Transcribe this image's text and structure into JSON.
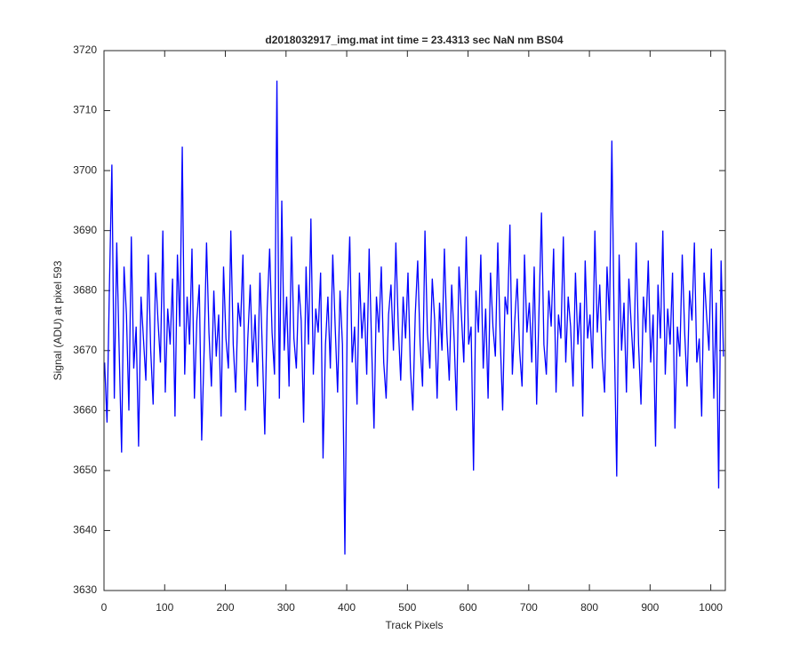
{
  "chart_data": {
    "type": "line",
    "title": "d2018032917_img.mat int time = 23.4313 sec  NaN nm BS04",
    "xlabel": "Track Pixels",
    "ylabel": "Signal (ADU) at pixel 593",
    "color": "#0000ff",
    "xlim": [
      0,
      1024
    ],
    "xticks": [
      0,
      100,
      200,
      300,
      400,
      500,
      600,
      700,
      800,
      900,
      1000
    ],
    "ylim": [
      3630,
      3720
    ],
    "yticks": [
      3630,
      3640,
      3650,
      3660,
      3670,
      3680,
      3690,
      3700,
      3710,
      3720
    ],
    "x": [
      1,
      5,
      9,
      13,
      17,
      21,
      25,
      29,
      33,
      37,
      41,
      45,
      49,
      53,
      57,
      61,
      65,
      69,
      73,
      77,
      81,
      85,
      89,
      93,
      97,
      101,
      105,
      109,
      113,
      117,
      121,
      125,
      129,
      133,
      137,
      141,
      145,
      149,
      153,
      157,
      161,
      165,
      169,
      173,
      177,
      181,
      185,
      189,
      193,
      197,
      201,
      205,
      209,
      213,
      217,
      221,
      225,
      229,
      233,
      237,
      241,
      245,
      249,
      253,
      257,
      261,
      265,
      269,
      273,
      277,
      281,
      285,
      289,
      293,
      297,
      301,
      305,
      309,
      313,
      317,
      321,
      325,
      329,
      333,
      337,
      341,
      345,
      349,
      353,
      357,
      361,
      365,
      369,
      373,
      377,
      381,
      385,
      389,
      393,
      397,
      401,
      405,
      409,
      413,
      417,
      421,
      425,
      429,
      433,
      437,
      441,
      445,
      449,
      453,
      457,
      461,
      465,
      469,
      473,
      477,
      481,
      485,
      489,
      493,
      497,
      501,
      505,
      509,
      513,
      517,
      521,
      525,
      529,
      533,
      537,
      541,
      545,
      549,
      553,
      557,
      561,
      565,
      569,
      573,
      577,
      581,
      585,
      589,
      593,
      597,
      601,
      605,
      609,
      613,
      617,
      621,
      625,
      629,
      633,
      637,
      641,
      645,
      649,
      653,
      657,
      661,
      665,
      669,
      673,
      677,
      681,
      685,
      689,
      693,
      697,
      701,
      705,
      709,
      713,
      717,
      721,
      725,
      729,
      733,
      737,
      741,
      745,
      749,
      753,
      757,
      761,
      765,
      769,
      773,
      777,
      781,
      785,
      789,
      793,
      797,
      801,
      805,
      809,
      813,
      817,
      821,
      825,
      829,
      833,
      837,
      841,
      845,
      849,
      853,
      857,
      861,
      865,
      869,
      873,
      877,
      881,
      885,
      889,
      893,
      897,
      901,
      905,
      909,
      913,
      917,
      921,
      925,
      929,
      933,
      937,
      941,
      945,
      949,
      953,
      957,
      961,
      965,
      969,
      973,
      977,
      981,
      985,
      989,
      993,
      997,
      1001,
      1005,
      1009,
      1013,
      1017,
      1021
    ],
    "values": [
      3668,
      3658,
      3681,
      3701,
      3662,
      3688,
      3670,
      3653,
      3684,
      3676,
      3660,
      3689,
      3667,
      3674,
      3654,
      3679,
      3672,
      3665,
      3686,
      3670,
      3661,
      3683,
      3675,
      3668,
      3690,
      3663,
      3677,
      3671,
      3682,
      3659,
      3686,
      3674,
      3704,
      3666,
      3679,
      3671,
      3687,
      3662,
      3675,
      3681,
      3655,
      3670,
      3688,
      3673,
      3664,
      3680,
      3669,
      3676,
      3659,
      3684,
      3672,
      3667,
      3690,
      3671,
      3663,
      3678,
      3674,
      3686,
      3660,
      3672,
      3681,
      3668,
      3676,
      3664,
      3683,
      3670,
      3656,
      3677,
      3687,
      3673,
      3666,
      3715,
      3662,
      3695,
      3670,
      3679,
      3664,
      3689,
      3672,
      3667,
      3681,
      3675,
      3658,
      3684,
      3671,
      3692,
      3666,
      3677,
      3673,
      3683,
      3652,
      3671,
      3679,
      3667,
      3686,
      3674,
      3663,
      3680,
      3671,
      3636,
      3677,
      3689,
      3668,
      3674,
      3661,
      3683,
      3672,
      3678,
      3666,
      3687,
      3671,
      3657,
      3679,
      3673,
      3684,
      3668,
      3662,
      3676,
      3681,
      3670,
      3688,
      3674,
      3665,
      3679,
      3672,
      3683,
      3667,
      3660,
      3676,
      3685,
      3671,
      3664,
      3690,
      3673,
      3667,
      3682,
      3675,
      3662,
      3678,
      3670,
      3687,
      3673,
      3665,
      3681,
      3672,
      3660,
      3684,
      3676,
      3668,
      3689,
      3671,
      3674,
      3650,
      3680,
      3673,
      3686,
      3667,
      3677,
      3662,
      3683,
      3674,
      3669,
      3688,
      3672,
      3660,
      3679,
      3676,
      3691,
      3666,
      3675,
      3682,
      3670,
      3664,
      3686,
      3673,
      3678,
      3668,
      3684,
      3661,
      3677,
      3693,
      3671,
      3666,
      3680,
      3674,
      3687,
      3663,
      3676,
      3672,
      3689,
      3668,
      3679,
      3674,
      3664,
      3683,
      3671,
      3678,
      3659,
      3685,
      3672,
      3676,
      3667,
      3690,
      3673,
      3681,
      3669,
      3663,
      3684,
      3675,
      3705,
      3672,
      3649,
      3686,
      3670,
      3678,
      3663,
      3682,
      3674,
      3667,
      3688,
      3671,
      3661,
      3679,
      3673,
      3685,
      3668,
      3676,
      3654,
      3681,
      3672,
      3690,
      3666,
      3677,
      3671,
      3683,
      3657,
      3674,
      3669,
      3686,
      3673,
      3664,
      3680,
      3675,
      3688,
      3668,
      3672,
      3659,
      3683,
      3676,
      3670,
      3687,
      3662,
      3678,
      3647,
      3685,
      3669
    ]
  }
}
